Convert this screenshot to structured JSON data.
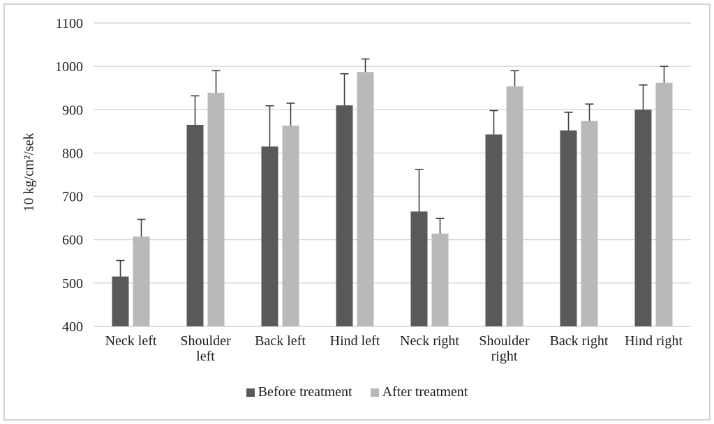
{
  "chart_data": {
    "type": "bar",
    "title": "",
    "xlabel": "",
    "ylabel": "10 kg/cm²/sek",
    "ylim": [
      400,
      1100
    ],
    "ytick_step": 100,
    "yticks": [
      "400",
      "500",
      "600",
      "700",
      "800",
      "900",
      "1000",
      "1100"
    ],
    "grid": true,
    "legend_position": "bottom",
    "categories": [
      "Neck left",
      "Shoulder\nleft",
      "Back left",
      "Hind left",
      "Neck right",
      "Shoulder\nright",
      "Back right",
      "Hind right"
    ],
    "series": [
      {
        "name": "Before treatment",
        "color": "#595959",
        "values": [
          515,
          865,
          815,
          910,
          665,
          843,
          852,
          900
        ],
        "error_plus": [
          37,
          67,
          94,
          73,
          97,
          55,
          42,
          57
        ]
      },
      {
        "name": "After treatment",
        "color": "#b9b9b9",
        "values": [
          607,
          939,
          863,
          987,
          614,
          954,
          874,
          962
        ],
        "error_plus": [
          40,
          51,
          52,
          30,
          35,
          36,
          39,
          38
        ]
      }
    ],
    "colors": {
      "grid": "#d6d6d6",
      "text": "#1d1d26",
      "error": "#3f3f3f"
    }
  }
}
